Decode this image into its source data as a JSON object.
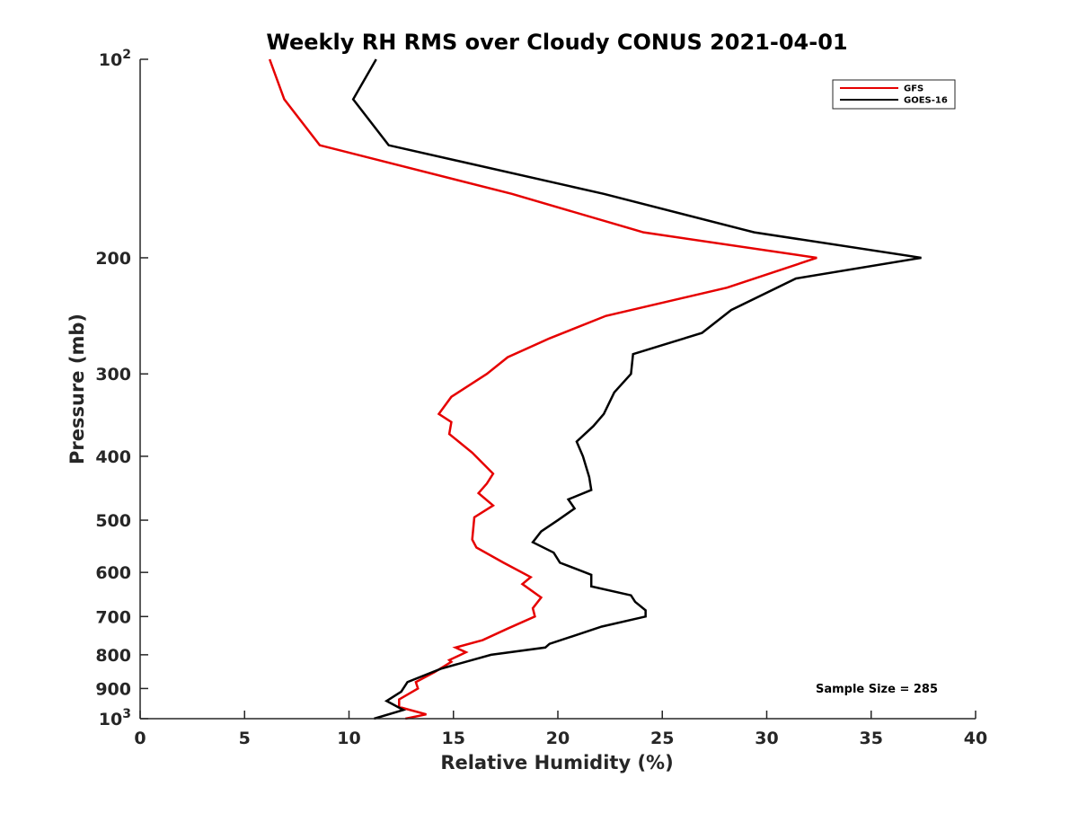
{
  "chart_data": {
    "type": "line",
    "title": "Weekly RH RMS over Cloudy CONUS 2021-04-01",
    "xlabel": "Relative Humidity (%)",
    "ylabel": "Pressure (mb)",
    "xlim": [
      0,
      40
    ],
    "ylim": [
      100,
      1000
    ],
    "yscale": "log",
    "y_reversed": true,
    "x_ticks": [
      0,
      5,
      10,
      15,
      20,
      25,
      30,
      35,
      40
    ],
    "x_tick_labels": [
      "0",
      "5",
      "10",
      "15",
      "20",
      "25",
      "30",
      "35",
      "40"
    ],
    "y_ticks": [
      100,
      200,
      300,
      400,
      500,
      600,
      700,
      800,
      900,
      1000
    ],
    "y_tick_labels": [
      {
        "base": "10",
        "exp": "2"
      },
      {
        "base": "200",
        "exp": ""
      },
      {
        "base": "300",
        "exp": ""
      },
      {
        "base": "400",
        "exp": ""
      },
      {
        "base": "500",
        "exp": ""
      },
      {
        "base": "600",
        "exp": ""
      },
      {
        "base": "700",
        "exp": ""
      },
      {
        "base": "800",
        "exp": ""
      },
      {
        "base": "900",
        "exp": ""
      },
      {
        "base": "10",
        "exp": "3"
      }
    ],
    "grid": false,
    "legend_position": "top-right",
    "annotation": "Sample Size = 285",
    "series": [
      {
        "name": "GFS",
        "color": "#e60000",
        "x": [
          6.2,
          6.9,
          8.6,
          17.8,
          24.1,
          32.4,
          28.1,
          22.3,
          19.6,
          17.6,
          16.6,
          14.9,
          14.3,
          14.9,
          14.8,
          15.9,
          16.9,
          16.6,
          16.2,
          16.9,
          16.0,
          15.9,
          16.1,
          17.4,
          18.7,
          18.3,
          19.2,
          18.8,
          18.9,
          17.6,
          16.4,
          15.1,
          15.6,
          14.8,
          14.9,
          14.1,
          13.2,
          13.3,
          12.4,
          12.4,
          13.7,
          12.7
        ],
        "y": [
          100,
          115,
          135,
          160,
          183,
          200,
          222,
          245,
          265,
          283,
          300,
          325,
          345,
          355,
          370,
          395,
          425,
          440,
          455,
          475,
          495,
          535,
          550,
          580,
          610,
          625,
          655,
          680,
          700,
          730,
          760,
          780,
          793,
          815,
          820,
          850,
          880,
          900,
          935,
          960,
          985,
          1000
        ]
      },
      {
        "name": "GOES-16",
        "color": "#000000",
        "x": [
          11.3,
          10.2,
          11.9,
          22.2,
          29.4,
          37.4,
          31.4,
          28.3,
          26.9,
          23.6,
          23.5,
          22.7,
          22.2,
          21.7,
          20.9,
          21.2,
          21.5,
          21.6,
          20.5,
          20.8,
          20.0,
          19.2,
          18.8,
          19.8,
          20.1,
          21.6,
          21.6,
          23.5,
          23.7,
          24.2,
          24.2,
          22.1,
          20.7,
          19.6,
          19.4,
          16.8,
          14.4,
          12.8,
          12.5,
          11.8,
          12.6,
          11.2
        ],
        "y": [
          100,
          115,
          135,
          160,
          183,
          200,
          215,
          240,
          260,
          280,
          300,
          320,
          345,
          360,
          380,
          400,
          430,
          450,
          465,
          480,
          500,
          520,
          540,
          560,
          580,
          605,
          630,
          650,
          665,
          685,
          700,
          725,
          750,
          770,
          780,
          800,
          840,
          880,
          910,
          940,
          970,
          1000
        ]
      }
    ]
  }
}
